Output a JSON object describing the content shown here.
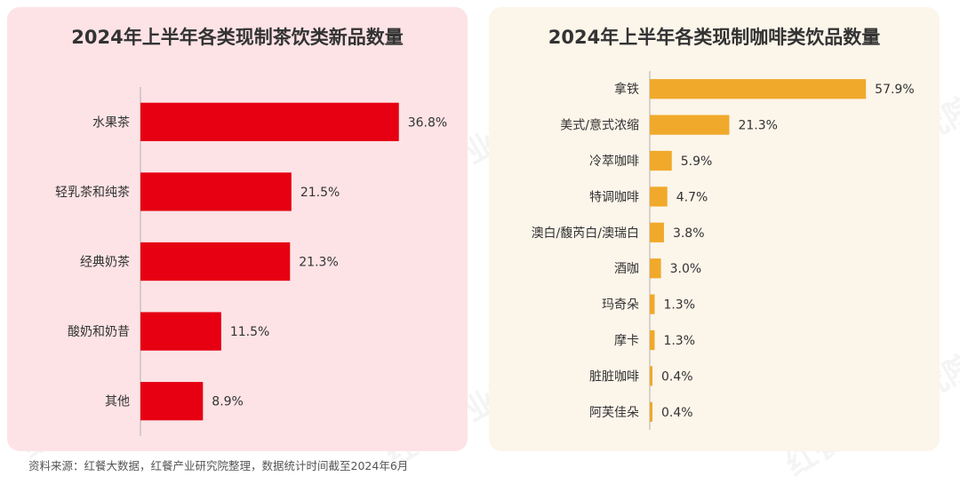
{
  "source_note": "资料来源：红餐大数据，红餐产业研究院整理，数据统计时间截至2024年6月",
  "watermark": "红餐产业研究院",
  "colors": {
    "tea_bar": "#e60012",
    "coffee_bar": "#f0a92a",
    "axis": "#b0b0b0"
  },
  "chart_data": [
    {
      "type": "bar",
      "orientation": "horizontal",
      "title": "2024年上半年各类现制茶饮类新品数量",
      "categories": [
        "水果茶",
        "轻乳茶和纯茶",
        "经典奶茶",
        "酸奶和奶昔",
        "其他"
      ],
      "values": [
        36.8,
        21.5,
        21.3,
        11.5,
        8.9
      ],
      "value_labels": [
        "36.8%",
        "21.5%",
        "21.3%",
        "11.5%",
        "8.9%"
      ],
      "xlim": [
        0,
        50
      ]
    },
    {
      "type": "bar",
      "orientation": "horizontal",
      "title": "2024年上半年各类现制咖啡类饮品数量",
      "categories": [
        "拿铁",
        "美式/意式浓缩",
        "冷萃咖啡",
        "特调咖啡",
        "澳白/馥芮白/澳瑞白",
        "酒咖",
        "玛奇朵",
        "摩卡",
        "脏脏咖啡",
        "阿芙佳朵"
      ],
      "values": [
        57.9,
        21.3,
        5.9,
        4.7,
        3.8,
        3.0,
        1.3,
        1.3,
        0.4,
        0.4
      ],
      "value_labels": [
        "57.9%",
        "21.3%",
        "5.9%",
        "4.7%",
        "3.8%",
        "3.0%",
        "1.3%",
        "1.3%",
        "0.4%",
        "0.4%"
      ],
      "xlim": [
        0,
        75
      ]
    }
  ]
}
